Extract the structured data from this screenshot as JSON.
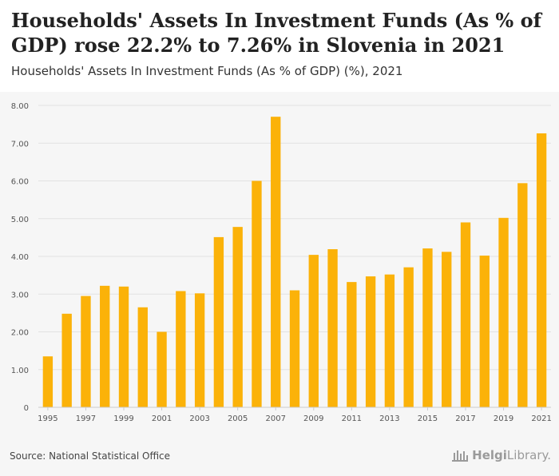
{
  "header": {
    "title": "Households' Assets In Investment Funds (As % of GDP) rose 22.2% to 7.26% in Slovenia in 2021",
    "subtitle": "Households' Assets In Investment Funds (As % of GDP) (%), 2021"
  },
  "footer": {
    "source": "Source: National Statistical Office",
    "brand_prefix": "Helgi",
    "brand_suffix": "Library."
  },
  "colors": {
    "bar": "#FBB209",
    "grid": "#e2e2e2",
    "panel": "#f6f6f6",
    "axis_text": "#555555"
  },
  "chart_data": {
    "type": "bar",
    "title": "Households' Assets In Investment Funds (As % of GDP) (%), 2021",
    "xlabel": "",
    "ylabel": "",
    "categories": [
      "1995",
      "1996",
      "1997",
      "1998",
      "1999",
      "2000",
      "2001",
      "2002",
      "2003",
      "2004",
      "2005",
      "2006",
      "2007",
      "2008",
      "2009",
      "2010",
      "2011",
      "2012",
      "2013",
      "2014",
      "2015",
      "2016",
      "2017",
      "2018",
      "2019",
      "2020",
      "2021"
    ],
    "x_tick_labels": [
      "1995",
      "1997",
      "1999",
      "2001",
      "2003",
      "2005",
      "2007",
      "2009",
      "2011",
      "2013",
      "2015",
      "2017",
      "2019",
      "2021"
    ],
    "values": [
      1.35,
      2.48,
      2.95,
      3.22,
      3.2,
      2.65,
      2.0,
      3.08,
      3.02,
      4.51,
      4.78,
      6.0,
      7.7,
      3.1,
      4.04,
      4.19,
      3.32,
      3.47,
      3.52,
      3.71,
      4.21,
      4.12,
      4.9,
      4.02,
      5.02,
      5.94,
      7.26
    ],
    "ylim": [
      0,
      8
    ],
    "y_ticks": [
      0,
      1,
      2,
      3,
      4,
      5,
      6,
      7,
      8
    ],
    "y_tick_labels": [
      "0",
      "1.00",
      "2.00",
      "3.00",
      "4.00",
      "5.00",
      "6.00",
      "7.00",
      "8.00"
    ],
    "grid": true
  }
}
